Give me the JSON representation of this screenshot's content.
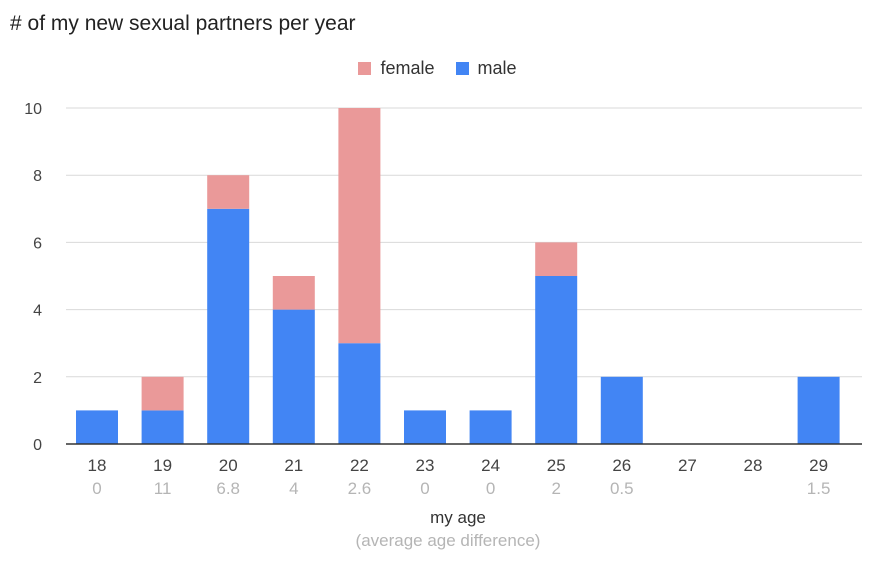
{
  "chart_data": {
    "type": "bar",
    "stacked": true,
    "title": "# of my new sexual partners per year",
    "xlabel": "my age",
    "xsublabel": "(average age difference)",
    "ylabel": "",
    "ylim": [
      0,
      10
    ],
    "yticks": [
      "0",
      "2",
      "4",
      "6",
      "8",
      "10"
    ],
    "grid": true,
    "legend_position": "top",
    "categories": [
      "18",
      "19",
      "20",
      "21",
      "22",
      "23",
      "24",
      "25",
      "26",
      "27",
      "28",
      "29"
    ],
    "sublabels": [
      "0",
      "11",
      "6.8",
      "4",
      "2.6",
      "0",
      "0",
      "2",
      "0.5",
      "",
      "",
      "1.5"
    ],
    "series": [
      {
        "name": "male",
        "color": "#4285f4",
        "values": [
          1,
          1,
          7,
          4,
          3,
          1,
          1,
          5,
          2,
          0,
          0,
          2
        ]
      },
      {
        "name": "female",
        "color": "#ea9999",
        "values": [
          0,
          1,
          1,
          1,
          7,
          0,
          0,
          1,
          0,
          0,
          0,
          0
        ]
      }
    ],
    "legend_order": [
      "female",
      "male"
    ]
  }
}
